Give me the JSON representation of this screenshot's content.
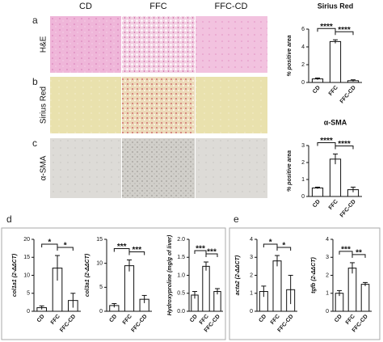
{
  "panels": {
    "letters": [
      "a",
      "b",
      "c",
      "d",
      "e"
    ],
    "columns": [
      "CD",
      "FFC",
      "FFC-CD"
    ],
    "rows": [
      "H&E",
      "Sirius Red",
      "α-SMA"
    ]
  },
  "chart_data": [
    {
      "type": "bar",
      "title": "Sirius Red",
      "y_label": "% positive area",
      "categories": [
        "CD",
        "FFC",
        "FFC-CD"
      ],
      "values": [
        0.4,
        4.6,
        0.2
      ],
      "errors": [
        0.1,
        0.2,
        0.1
      ],
      "ylim": [
        0,
        6
      ],
      "yticks": [
        0,
        2,
        4,
        6
      ],
      "annotations": [
        "****",
        "****"
      ]
    },
    {
      "type": "bar",
      "title": "α-SMA",
      "y_label": "% positive area",
      "categories": [
        "CD",
        "FFC",
        "FFC-CD"
      ],
      "values": [
        0.5,
        2.2,
        0.4
      ],
      "errors": [
        0.05,
        0.3,
        0.15
      ],
      "ylim": [
        0,
        3
      ],
      "yticks": [
        0,
        1,
        2,
        3
      ],
      "annotations": [
        "****",
        "****"
      ]
    },
    {
      "type": "bar",
      "y_label": "col1a1 (2-ΔΔCT)",
      "categories": [
        "CD",
        "FFC",
        "FFC-CD"
      ],
      "values": [
        1,
        12,
        3
      ],
      "errors": [
        0.5,
        3.5,
        2
      ],
      "ylim": [
        0,
        20
      ],
      "yticks": [
        0,
        5,
        10,
        15,
        20
      ],
      "annotations": [
        "*",
        "*"
      ]
    },
    {
      "type": "bar",
      "y_label": "col3a1 (2-ΔΔCT)",
      "categories": [
        "CD",
        "FFC",
        "FFC-CD"
      ],
      "values": [
        1.2,
        9.5,
        2.5
      ],
      "errors": [
        0.4,
        1.2,
        0.8
      ],
      "ylim": [
        0,
        15
      ],
      "yticks": [
        0,
        5,
        10,
        15
      ],
      "annotations": [
        "***",
        "***"
      ]
    },
    {
      "type": "bar",
      "y_label": "Hydroxyproline (mg/g of liver)",
      "categories": [
        "CD",
        "FFC",
        "FFC-CD"
      ],
      "values": [
        0.45,
        1.25,
        0.55
      ],
      "errors": [
        0.1,
        0.12,
        0.08
      ],
      "ylim": [
        0,
        2
      ],
      "yticks": [
        {
          "value": 0,
          "label": "0.0"
        },
        {
          "value": 0.5,
          "label": "0.5"
        },
        {
          "value": 1,
          "label": "1.0"
        },
        {
          "value": 1.5,
          "label": "1.5"
        },
        {
          "value": 2,
          "label": "2.0"
        }
      ],
      "annotations": [
        "***",
        "***"
      ]
    },
    {
      "type": "bar",
      "y_label": "acta2 (2-ΔΔCT)",
      "categories": [
        "CD",
        "FFC",
        "FFC-CD"
      ],
      "values": [
        1.1,
        2.8,
        1.2
      ],
      "errors": [
        0.3,
        0.3,
        0.8
      ],
      "ylim": [
        0,
        4
      ],
      "yticks": [
        0,
        1,
        2,
        3,
        4
      ],
      "annotations": [
        "*",
        "*"
      ]
    },
    {
      "type": "bar",
      "y_label": "tgfb (2-ΔΔCT)",
      "categories": [
        "CD",
        "FFC",
        "FFC-CD"
      ],
      "values": [
        1.0,
        2.4,
        1.5
      ],
      "errors": [
        0.15,
        0.3,
        0.1
      ],
      "ylim": [
        0,
        4
      ],
      "yticks": [
        0,
        1,
        2,
        3,
        4
      ],
      "annotations": [
        "***",
        "**"
      ]
    }
  ]
}
